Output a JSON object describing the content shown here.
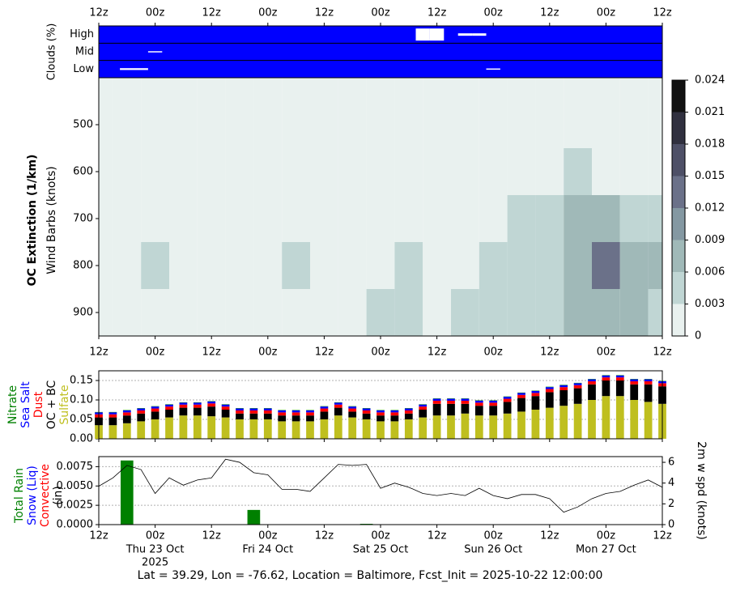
{
  "chart_data": [
    {
      "type": "cloud-layers",
      "ylabel": "Clouds (%)",
      "color": "#0000ff",
      "categories": [
        "12z",
        null,
        null,
        null,
        "00z",
        null,
        null,
        null,
        "12z",
        null,
        null,
        null,
        "00z",
        null,
        null,
        null,
        "12z",
        null,
        null,
        null,
        "00z",
        null,
        null,
        null,
        "12z",
        null,
        null,
        null,
        "00z",
        null,
        null,
        null,
        "12z",
        null,
        null,
        null,
        "00z",
        null,
        null,
        null,
        "12z"
      ],
      "series": [
        {
          "name": "High",
          "values": [
            0,
            0,
            0,
            0,
            0,
            0,
            0,
            0,
            0,
            0,
            0,
            0,
            0,
            0,
            0,
            0,
            0,
            0,
            0,
            0,
            0,
            0,
            0,
            100,
            100,
            0,
            20,
            20,
            0,
            0,
            0,
            0,
            0,
            0,
            0,
            0,
            0,
            0,
            0,
            0,
            0
          ]
        },
        {
          "name": "Mid",
          "values": [
            0,
            0,
            0,
            0,
            10,
            0,
            0,
            0,
            0,
            0,
            0,
            0,
            0,
            0,
            0,
            0,
            0,
            0,
            0,
            0,
            0,
            0,
            0,
            0,
            0,
            0,
            0,
            0,
            0,
            0,
            0,
            0,
            0,
            0,
            0,
            0,
            0,
            0,
            0,
            0,
            0
          ]
        },
        {
          "name": "Low",
          "values": [
            0,
            0,
            15,
            15,
            0,
            0,
            0,
            0,
            0,
            0,
            0,
            0,
            0,
            0,
            0,
            0,
            0,
            0,
            0,
            0,
            0,
            0,
            0,
            0,
            0,
            0,
            0,
            0,
            10,
            0,
            0,
            0,
            0,
            0,
            0,
            0,
            0,
            0,
            0,
            0,
            0
          ]
        }
      ]
    },
    {
      "type": "contour",
      "ylabel": "OC Extinction (1/km)",
      "ylabel2": "Wind Barbs (knots)",
      "categories": [
        "12z",
        null,
        "00z",
        null,
        "12z",
        null,
        "00z",
        null,
        "12z",
        null,
        "00z",
        null,
        "12z",
        null,
        "00z",
        null,
        "12z",
        null,
        "00z",
        null,
        "12z"
      ],
      "levels": [
        900,
        800,
        700,
        600,
        500
      ],
      "values": [
        [
          0.002,
          0.002,
          0.002,
          0.002,
          0.002,
          0.002,
          0.002,
          0.002,
          0.002,
          0.002,
          0.004,
          0.003,
          0.002,
          0.004,
          0.005,
          0.004,
          0.004,
          0.006,
          0.007,
          0.007,
          0.005
        ],
        [
          0.002,
          0.002,
          0.004,
          0.002,
          0.002,
          0.002,
          0.002,
          0.003,
          0.002,
          0.002,
          0.002,
          0.004,
          0.002,
          0.002,
          0.004,
          0.004,
          0.003,
          0.007,
          0.013,
          0.007,
          0.006
        ],
        [
          0.002,
          0.002,
          0.002,
          0.002,
          0.002,
          0.002,
          0.002,
          0.002,
          0.002,
          0.002,
          0.002,
          0.002,
          0.002,
          0.002,
          0.002,
          0.003,
          0.004,
          0.007,
          0.006,
          0.004,
          0.003
        ],
        [
          0.002,
          0.002,
          0.002,
          0.002,
          0.002,
          0.002,
          0.002,
          0.002,
          0.002,
          0.002,
          0.002,
          0.002,
          0.002,
          0.002,
          0.002,
          0.002,
          0.002,
          0.003,
          0.002,
          0.002,
          0.002
        ],
        [
          0.001,
          0.001,
          0.001,
          0.001,
          0.001,
          0.001,
          0.001,
          0.001,
          0.001,
          0.001,
          0.001,
          0.001,
          0.001,
          0.001,
          0.001,
          0.001,
          0.001,
          0.001,
          0.001,
          0.001,
          0.001
        ]
      ],
      "ylim": [
        950,
        400
      ],
      "yticks": [
        500,
        600,
        700,
        800,
        900
      ],
      "colorbar": {
        "ticks": [
          0,
          0.003,
          0.006,
          0.009,
          0.012,
          0.015,
          0.018,
          0.021,
          0.024
        ],
        "colors": [
          "#e9f1ef",
          "#c0d6d4",
          "#a0b9b8",
          "#8498a2",
          "#6b7189",
          "#4e5067",
          "#30303f",
          "#111111"
        ]
      }
    },
    {
      "type": "stacked-bar",
      "ylim": [
        0,
        0.175
      ],
      "grid": true,
      "yticks": [
        {
          "value": 0,
          "label": "0.00"
        },
        0.05,
        {
          "value": 0.1,
          "label": "0.10"
        },
        0.15
      ],
      "series": [
        {
          "name": "Sulfate",
          "color": "#bfbf1f",
          "values": [
            0.035,
            0.035,
            0.04,
            0.045,
            0.05,
            0.055,
            0.06,
            0.06,
            0.058,
            0.055,
            0.05,
            0.05,
            0.05,
            0.045,
            0.045,
            0.045,
            0.05,
            0.06,
            0.055,
            0.05,
            0.045,
            0.045,
            0.05,
            0.055,
            0.06,
            0.06,
            0.065,
            0.06,
            0.06,
            0.065,
            0.07,
            0.075,
            0.08,
            0.085,
            0.09,
            0.1,
            0.11,
            0.11,
            0.1,
            0.095,
            0.09
          ]
        },
        {
          "name": "OC + BC",
          "color": "#000000",
          "values": [
            0.02,
            0.02,
            0.02,
            0.02,
            0.02,
            0.02,
            0.02,
            0.02,
            0.025,
            0.02,
            0.015,
            0.015,
            0.015,
            0.015,
            0.015,
            0.015,
            0.02,
            0.02,
            0.015,
            0.015,
            0.015,
            0.015,
            0.015,
            0.02,
            0.03,
            0.03,
            0.025,
            0.025,
            0.025,
            0.03,
            0.035,
            0.035,
            0.04,
            0.04,
            0.04,
            0.04,
            0.04,
            0.04,
            0.04,
            0.045,
            0.045
          ]
        },
        {
          "name": "Dust",
          "color": "#ff0000",
          "values": [
            0.008,
            0.008,
            0.008,
            0.008,
            0.008,
            0.008,
            0.008,
            0.008,
            0.008,
            0.008,
            0.008,
            0.008,
            0.008,
            0.008,
            0.008,
            0.008,
            0.008,
            0.008,
            0.008,
            0.008,
            0.008,
            0.008,
            0.008,
            0.008,
            0.008,
            0.008,
            0.008,
            0.008,
            0.008,
            0.008,
            0.008,
            0.008,
            0.008,
            0.008,
            0.008,
            0.008,
            0.008,
            0.008,
            0.008,
            0.008,
            0.008
          ]
        },
        {
          "name": "Sea Salt",
          "color": "#0000ff",
          "values": [
            0.005,
            0.005,
            0.005,
            0.005,
            0.005,
            0.005,
            0.005,
            0.005,
            0.005,
            0.005,
            0.005,
            0.005,
            0.005,
            0.005,
            0.005,
            0.005,
            0.005,
            0.005,
            0.005,
            0.005,
            0.005,
            0.005,
            0.005,
            0.005,
            0.005,
            0.005,
            0.005,
            0.005,
            0.005,
            0.005,
            0.005,
            0.005,
            0.005,
            0.005,
            0.005,
            0.005,
            0.005,
            0.005,
            0.005,
            0.005,
            0.005
          ]
        },
        {
          "name": "Nitrate",
          "color": "#008000",
          "values": [
            0.001,
            0.001,
            0.001,
            0.001,
            0.001,
            0.001,
            0.001,
            0.001,
            0.001,
            0.001,
            0.001,
            0.001,
            0.001,
            0.001,
            0.001,
            0.001,
            0.001,
            0.001,
            0.001,
            0.001,
            0.001,
            0.001,
            0.001,
            0.001,
            0.001,
            0.001,
            0.001,
            0.001,
            0.001,
            0.001,
            0.001,
            0.001,
            0.001,
            0.001,
            0.001,
            0.001,
            0.001,
            0.001,
            0.001,
            0.001,
            0.001
          ]
        }
      ]
    },
    {
      "type": "bar-line",
      "ylabel": "(in)",
      "grid": true,
      "categories": [
        "12z",
        null,
        null,
        null,
        "00z",
        null,
        null,
        null,
        "12z",
        null,
        null,
        null,
        "00z",
        null,
        null,
        null,
        "12z",
        null,
        null,
        null,
        "00z",
        null,
        null,
        null,
        "12z",
        null,
        null,
        null,
        "00z",
        null,
        null,
        null,
        "12z",
        null,
        null,
        null,
        "00z",
        null,
        null,
        null,
        "12z"
      ],
      "date_labels": [
        null,
        null,
        null,
        null,
        "Thu 23 Oct",
        null,
        null,
        null,
        null,
        null,
        null,
        null,
        "Fri 24 Oct",
        null,
        null,
        null,
        null,
        null,
        null,
        null,
        "Sat 25 Oct",
        null,
        null,
        null,
        null,
        null,
        null,
        null,
        "Sun 26 Oct",
        null,
        null,
        null,
        null,
        null,
        null,
        null,
        "Mon 27 Oct",
        null,
        null,
        null,
        null
      ],
      "year_label": "2025",
      "ylim": [
        0,
        0.0088
      ],
      "yticks": [
        {
          "value": 0,
          "label": "0.0000"
        },
        0.0025,
        {
          "value": 0.005,
          "label": "0.0050"
        },
        0.0075
      ],
      "y2lim": [
        0,
        6.55
      ],
      "y2ticks": [
        0,
        2,
        4,
        6
      ],
      "series": [
        {
          "name": "Total Rain",
          "color": "#008000",
          "values": [
            0,
            0,
            0.0083,
            0,
            0,
            0,
            0,
            0,
            0,
            0,
            0,
            0.0019,
            0,
            0,
            0,
            0,
            0,
            0,
            0,
            0.0001,
            0,
            0,
            0,
            0,
            0,
            0,
            0,
            0,
            0,
            0,
            0,
            0,
            0,
            0,
            0,
            0,
            0,
            0,
            0,
            0,
            0
          ]
        },
        {
          "name": "Snow (Liq)",
          "color": "#0000ff",
          "values": [
            0,
            0,
            0,
            0,
            0,
            0,
            0,
            0,
            0,
            0,
            0,
            0,
            0,
            0,
            0,
            0,
            0,
            0,
            0,
            0,
            0,
            0,
            0,
            0,
            0,
            0,
            0,
            0,
            0,
            0,
            0,
            0,
            0,
            0,
            0,
            0,
            0,
            0,
            0,
            0,
            0
          ]
        },
        {
          "name": "Convective",
          "color": "#ff0000",
          "values": [
            0,
            0,
            0,
            0,
            0,
            0,
            0,
            0,
            0,
            0,
            0,
            0,
            0,
            0,
            0,
            0,
            0,
            0,
            0,
            0,
            0,
            0,
            0,
            0,
            0,
            0,
            0,
            0,
            0,
            0,
            0,
            0,
            0,
            0,
            0,
            0,
            0,
            0,
            0,
            0,
            0
          ]
        },
        {
          "name": "2m w spd (knots)",
          "color": "#000000",
          "axis": "y2",
          "values": [
            3.7,
            4.5,
            5.7,
            5.3,
            3.0,
            4.5,
            3.8,
            4.3,
            4.5,
            6.3,
            6.0,
            5.0,
            4.8,
            3.4,
            3.4,
            3.2,
            4.5,
            5.8,
            5.7,
            5.8,
            3.5,
            4.0,
            3.6,
            3.0,
            2.8,
            3.0,
            2.8,
            3.5,
            2.8,
            2.5,
            2.9,
            2.9,
            2.5,
            1.2,
            1.7,
            2.5,
            3.0,
            3.2,
            3.8,
            4.3,
            3.6
          ]
        }
      ]
    }
  ],
  "caption": "Lat = 39.29, Lon = -76.62, Location = Baltimore, Fcst_Init = 2025-10-22 12:00:00"
}
